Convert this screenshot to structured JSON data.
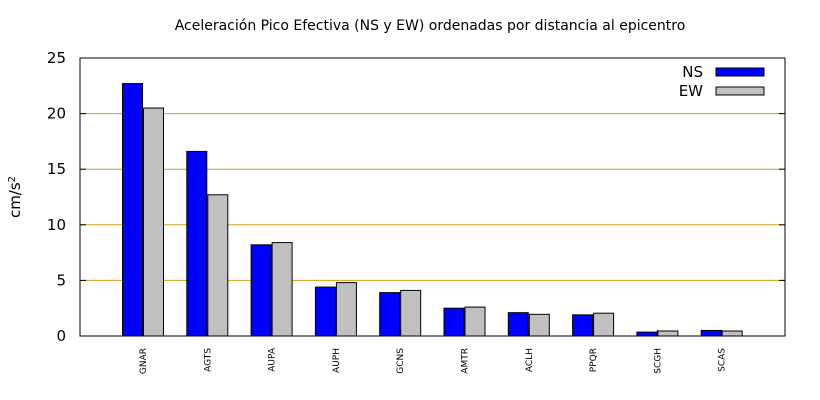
{
  "chart_data": {
    "type": "bar",
    "title": "Aceleración Pico Efectiva (NS y EW) ordenadas por distancia al epicentro",
    "ylabel_base": "cm/s",
    "ylabel_exp": "2",
    "xlabel": "",
    "ylim": [
      0,
      25
    ],
    "yticks": [
      0,
      5,
      10,
      15,
      20,
      25
    ],
    "grid": true,
    "legend_position": "top-right",
    "categories": [
      "GNAR",
      "AGTS",
      "AUPA",
      "AUPH",
      "GCNS",
      "AMTR",
      "ACLH",
      "PPQR",
      "SCGH",
      "SCAS"
    ],
    "series": [
      {
        "name": "NS",
        "color": "#0000ff",
        "values": [
          22.7,
          16.6,
          8.2,
          4.4,
          3.9,
          2.5,
          2.1,
          1.9,
          0.35,
          0.5
        ]
      },
      {
        "name": "EW",
        "color": "#c0c0c0",
        "values": [
          20.5,
          12.7,
          8.4,
          4.8,
          4.1,
          2.6,
          1.95,
          2.05,
          0.45,
          0.45
        ]
      }
    ],
    "grid_color": "#d4a017"
  }
}
